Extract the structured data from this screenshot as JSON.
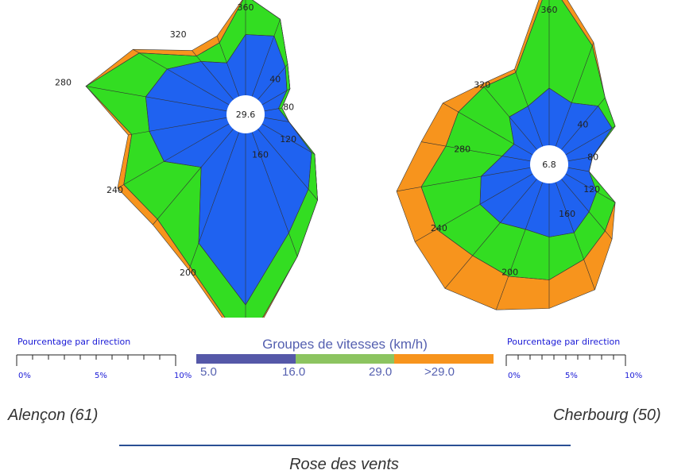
{
  "colors": {
    "band_1": "#1f62f0",
    "band_2": "#33dd22",
    "band_3": "#f7941d",
    "legend_1": "#5558a8",
    "legend_2": "#8cc460",
    "legend_3": "#f7941d"
  },
  "chart_data": [
    {
      "type": "polar-stacked-area",
      "station": "Alençon (61)",
      "center_value": "29.6",
      "direction_labels": [
        "40",
        "80",
        "120",
        "160",
        "200",
        "240",
        "280",
        "320",
        "360"
      ],
      "directions_deg": [
        0,
        20,
        40,
        60,
        80,
        100,
        120,
        140,
        160,
        180,
        200,
        220,
        240,
        260,
        280,
        300,
        320,
        340
      ],
      "series": [
        {
          "name": "5.0–16.0 km/h",
          "values": [
            17,
            18,
            12,
            8,
            4,
            7,
            16,
            22,
            30,
            48,
            33,
            14,
            21,
            22,
            23,
            20,
            14,
            10
          ]
        },
        {
          "name": "16.0–29.0 km/h",
          "values": [
            28,
            23,
            13,
            9,
            5,
            7,
            17,
            26,
            37,
            60,
            40,
            33,
            34,
            27,
            40,
            29,
            16,
            16
          ]
        },
        {
          "name": ">29.0 km/h",
          "values": [
            28,
            23,
            13,
            9,
            5,
            7,
            17,
            26,
            37,
            61,
            41,
            35,
            36,
            28,
            40,
            31,
            18,
            18
          ]
        }
      ]
    },
    {
      "type": "polar-stacked-area",
      "station": "Cherbourg (50)",
      "center_value": "6.8",
      "direction_labels": [
        "40",
        "80",
        "120",
        "160",
        "200",
        "240",
        "280",
        "320",
        "360"
      ],
      "directions_deg": [
        0,
        20,
        40,
        60,
        80,
        100,
        120,
        140,
        160,
        180,
        200,
        220,
        240,
        260,
        280,
        300,
        320,
        340
      ],
      "series": [
        {
          "name": "5.0–16.0 km/h",
          "values": [
            16,
            13,
            16,
            15,
            7,
            6,
            10,
            12,
            15,
            15,
            14,
            16,
            17,
            14,
            8,
            6,
            12,
            12
          ]
        },
        {
          "name": "16.0–29.0 km/h",
          "values": [
            46,
            30,
            19,
            16,
            7,
            6,
            16,
            19,
            23,
            27,
            28,
            28,
            31,
            31,
            24,
            24,
            23,
            22
          ]
        },
        {
          "name": ">29.0 km/h",
          "values": [
            49,
            31,
            19,
            16,
            7,
            6,
            16,
            22,
            32,
            35,
            38,
            40,
            38,
            38,
            31,
            29,
            24,
            23
          ]
        }
      ]
    }
  ],
  "scales": [
    {
      "title": "Pourcentage par direction",
      "labels": [
        "0%",
        "5%",
        "10%"
      ]
    },
    {
      "title": "Pourcentage par direction",
      "labels": [
        "0%",
        "5%",
        "10%"
      ]
    }
  ],
  "legend": {
    "title": "Groupes de vitesses (km/h)",
    "labels": [
      "5.0",
      "16.0",
      "29.0",
      ">29.0"
    ]
  },
  "stations": {
    "left": "Alençon (61)",
    "right": "Cherbourg (50)"
  },
  "footer": {
    "title": "Rose des vents"
  }
}
